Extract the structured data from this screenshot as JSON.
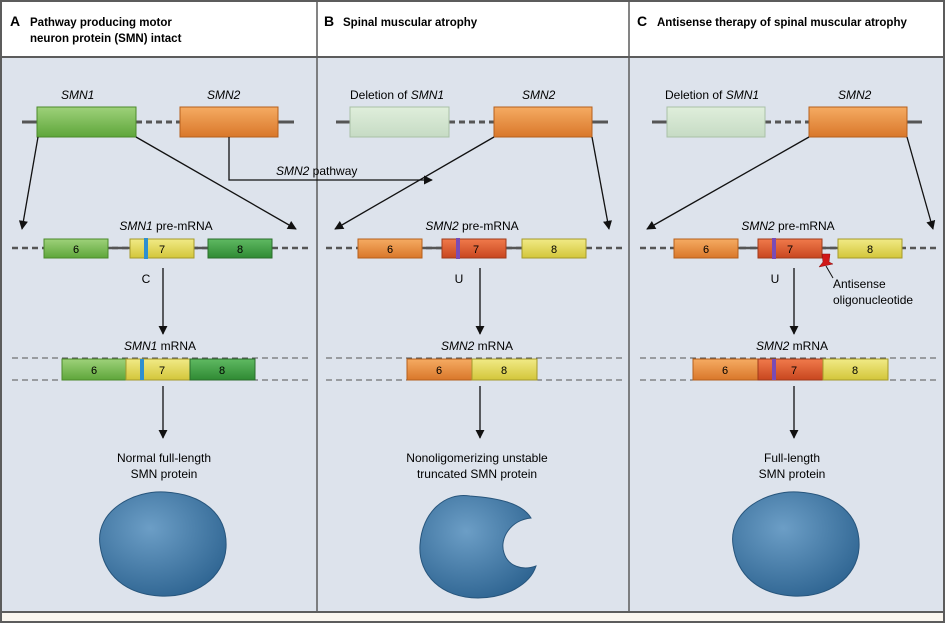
{
  "colors": {
    "panel_bg": "#dde3ec",
    "header_bg": "#ffffff",
    "footer_bg": "#faf6ef",
    "border": "#5c5c5c",
    "green": "#6fb443",
    "green_dark": "#3d9a3f",
    "yellow": "#e2d64a",
    "orange": "#e58a35",
    "red_orange": "#dd5a2a",
    "faded": "#cfe0cf",
    "c_mark": "#2d8fd0",
    "u_mark": "#7a4bb5",
    "oligo": "#d01818",
    "protein": "#3e79a8"
  },
  "panels": [
    {
      "letter": "A",
      "title_line1": "Pathway producing motor",
      "title_line2": "neuron protein (SMN) intact",
      "gene_left": "SMN1",
      "gene_right": "SMN2",
      "pre_mrna_gene": "SMN1",
      "pre_mrna_suffix": " pre-mRNA",
      "exons": [
        "6",
        "7",
        "8"
      ],
      "nucleotide": "C",
      "mrna_gene": "SMN1",
      "mrna_suffix": " mRNA",
      "mrna_exons": [
        "6",
        "7",
        "8"
      ],
      "outcome_line1": "Normal full-length",
      "outcome_line2": "SMN protein",
      "protein_icon": "round-protein"
    },
    {
      "letter": "B",
      "title_line1": "Spinal muscular atrophy",
      "title_line2": "",
      "deletion_prefix": "Deletion of ",
      "gene_left": "SMN1",
      "gene_right": "SMN2",
      "pre_mrna_gene": "SMN2",
      "pre_mrna_suffix": " pre-mRNA",
      "exons": [
        "6",
        "7",
        "8"
      ],
      "nucleotide": "U",
      "mrna_gene": "SMN2",
      "mrna_suffix": " mRNA",
      "mrna_exons": [
        "6",
        "8"
      ],
      "outcome_line1": "Nonoligomerizing unstable",
      "outcome_line2": "truncated SMN protein",
      "protein_icon": "truncated-protein"
    },
    {
      "letter": "C",
      "title_line1": "Antisense therapy of spinal muscular atrophy",
      "title_line2": "",
      "deletion_prefix": "Deletion of ",
      "gene_left": "SMN1",
      "gene_right": "SMN2",
      "pre_mrna_gene": "SMN2",
      "pre_mrna_suffix": " pre-mRNA",
      "exons": [
        "6",
        "7",
        "8"
      ],
      "nucleotide": "U",
      "antisense_line1": "Antisense",
      "antisense_line2": "oligonucleotide",
      "mrna_gene": "SMN2",
      "mrna_suffix": " mRNA",
      "mrna_exons": [
        "6",
        "7",
        "8"
      ],
      "outcome_line1": "Full-length",
      "outcome_line2": "SMN protein",
      "protein_icon": "round-protein"
    }
  ],
  "pathway_label_gene": "SMN2",
  "pathway_label_suffix": " pathway"
}
